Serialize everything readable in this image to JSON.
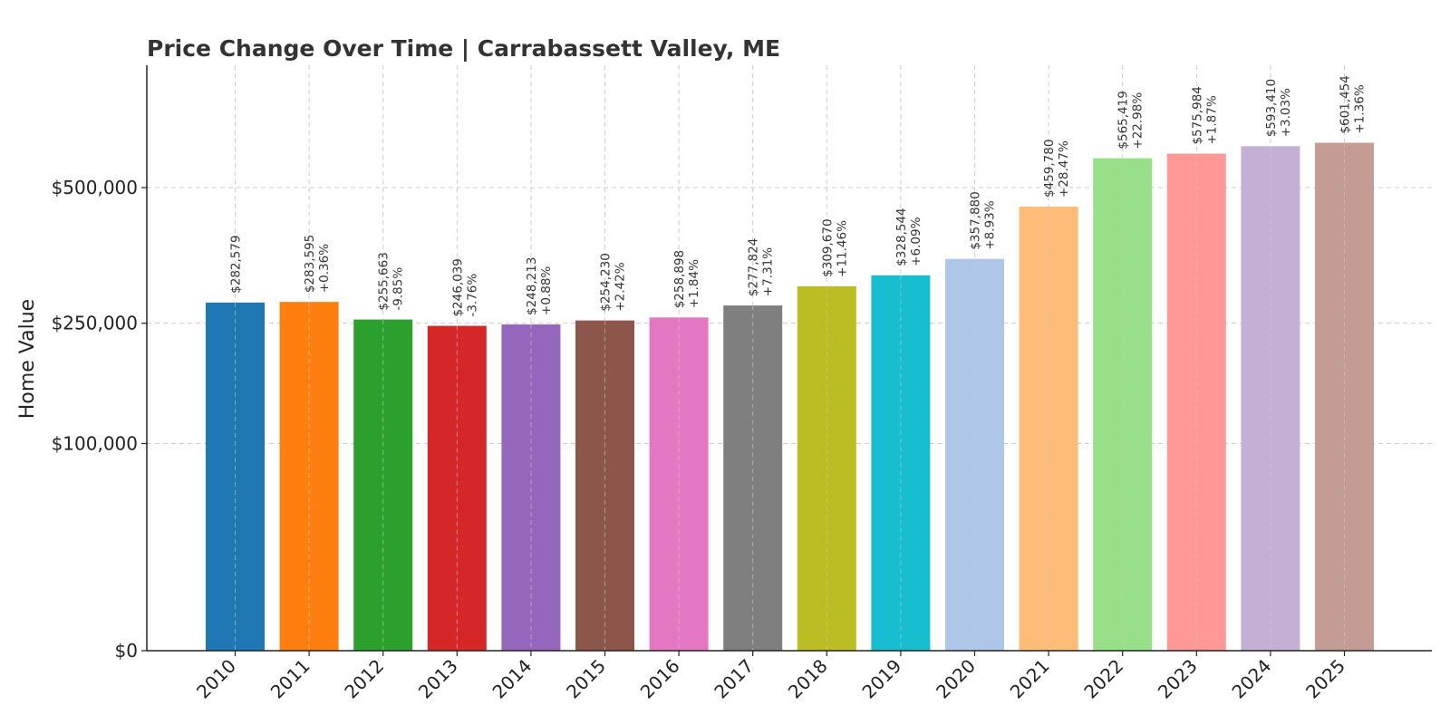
{
  "chart_data": {
    "type": "bar",
    "title": "Price Change Over Time | Carrabassett Valley, ME",
    "xlabel": "",
    "ylabel": "Home Value",
    "y_scale": "sqrt",
    "ylim": [
      0,
      650000
    ],
    "y_ticks": [
      0,
      100000,
      250000,
      500000
    ],
    "y_tick_labels": [
      "$0",
      "$100,000",
      "$250,000",
      "$500,000"
    ],
    "grid": true,
    "categories": [
      "2010",
      "2011",
      "2012",
      "2013",
      "2014",
      "2015",
      "2016",
      "2017",
      "2018",
      "2019",
      "2020",
      "2021",
      "2022",
      "2023",
      "2024",
      "2025"
    ],
    "values": [
      282579,
      283595,
      255663,
      246039,
      248213,
      254230,
      258898,
      277824,
      309670,
      328544,
      357880,
      459780,
      565419,
      575984,
      593410,
      601454
    ],
    "value_labels": [
      "$282,579",
      "$283,595",
      "$255,663",
      "$246,039",
      "$248,213",
      "$254,230",
      "$258,898",
      "$277,824",
      "$309,670",
      "$328,544",
      "$357,880",
      "$459,780",
      "$565,419",
      "$575,984",
      "$593,410",
      "$601,454"
    ],
    "change_labels": [
      "",
      "+0.36%",
      "-9.85%",
      "-3.76%",
      "+0.88%",
      "+2.42%",
      "+1.84%",
      "+7.31%",
      "+11.46%",
      "+6.09%",
      "+8.93%",
      "+28.47%",
      "+22.98%",
      "+1.87%",
      "+3.03%",
      "+1.36%"
    ],
    "colors": [
      "#1f77b4",
      "#ff7f0e",
      "#2ca02c",
      "#d62728",
      "#9467bd",
      "#8c564b",
      "#e377c2",
      "#7f7f7f",
      "#bcbd22",
      "#17becf",
      "#aec7e8",
      "#ffbb78",
      "#98df8a",
      "#ff9896",
      "#c5b0d5",
      "#c49c94"
    ]
  }
}
